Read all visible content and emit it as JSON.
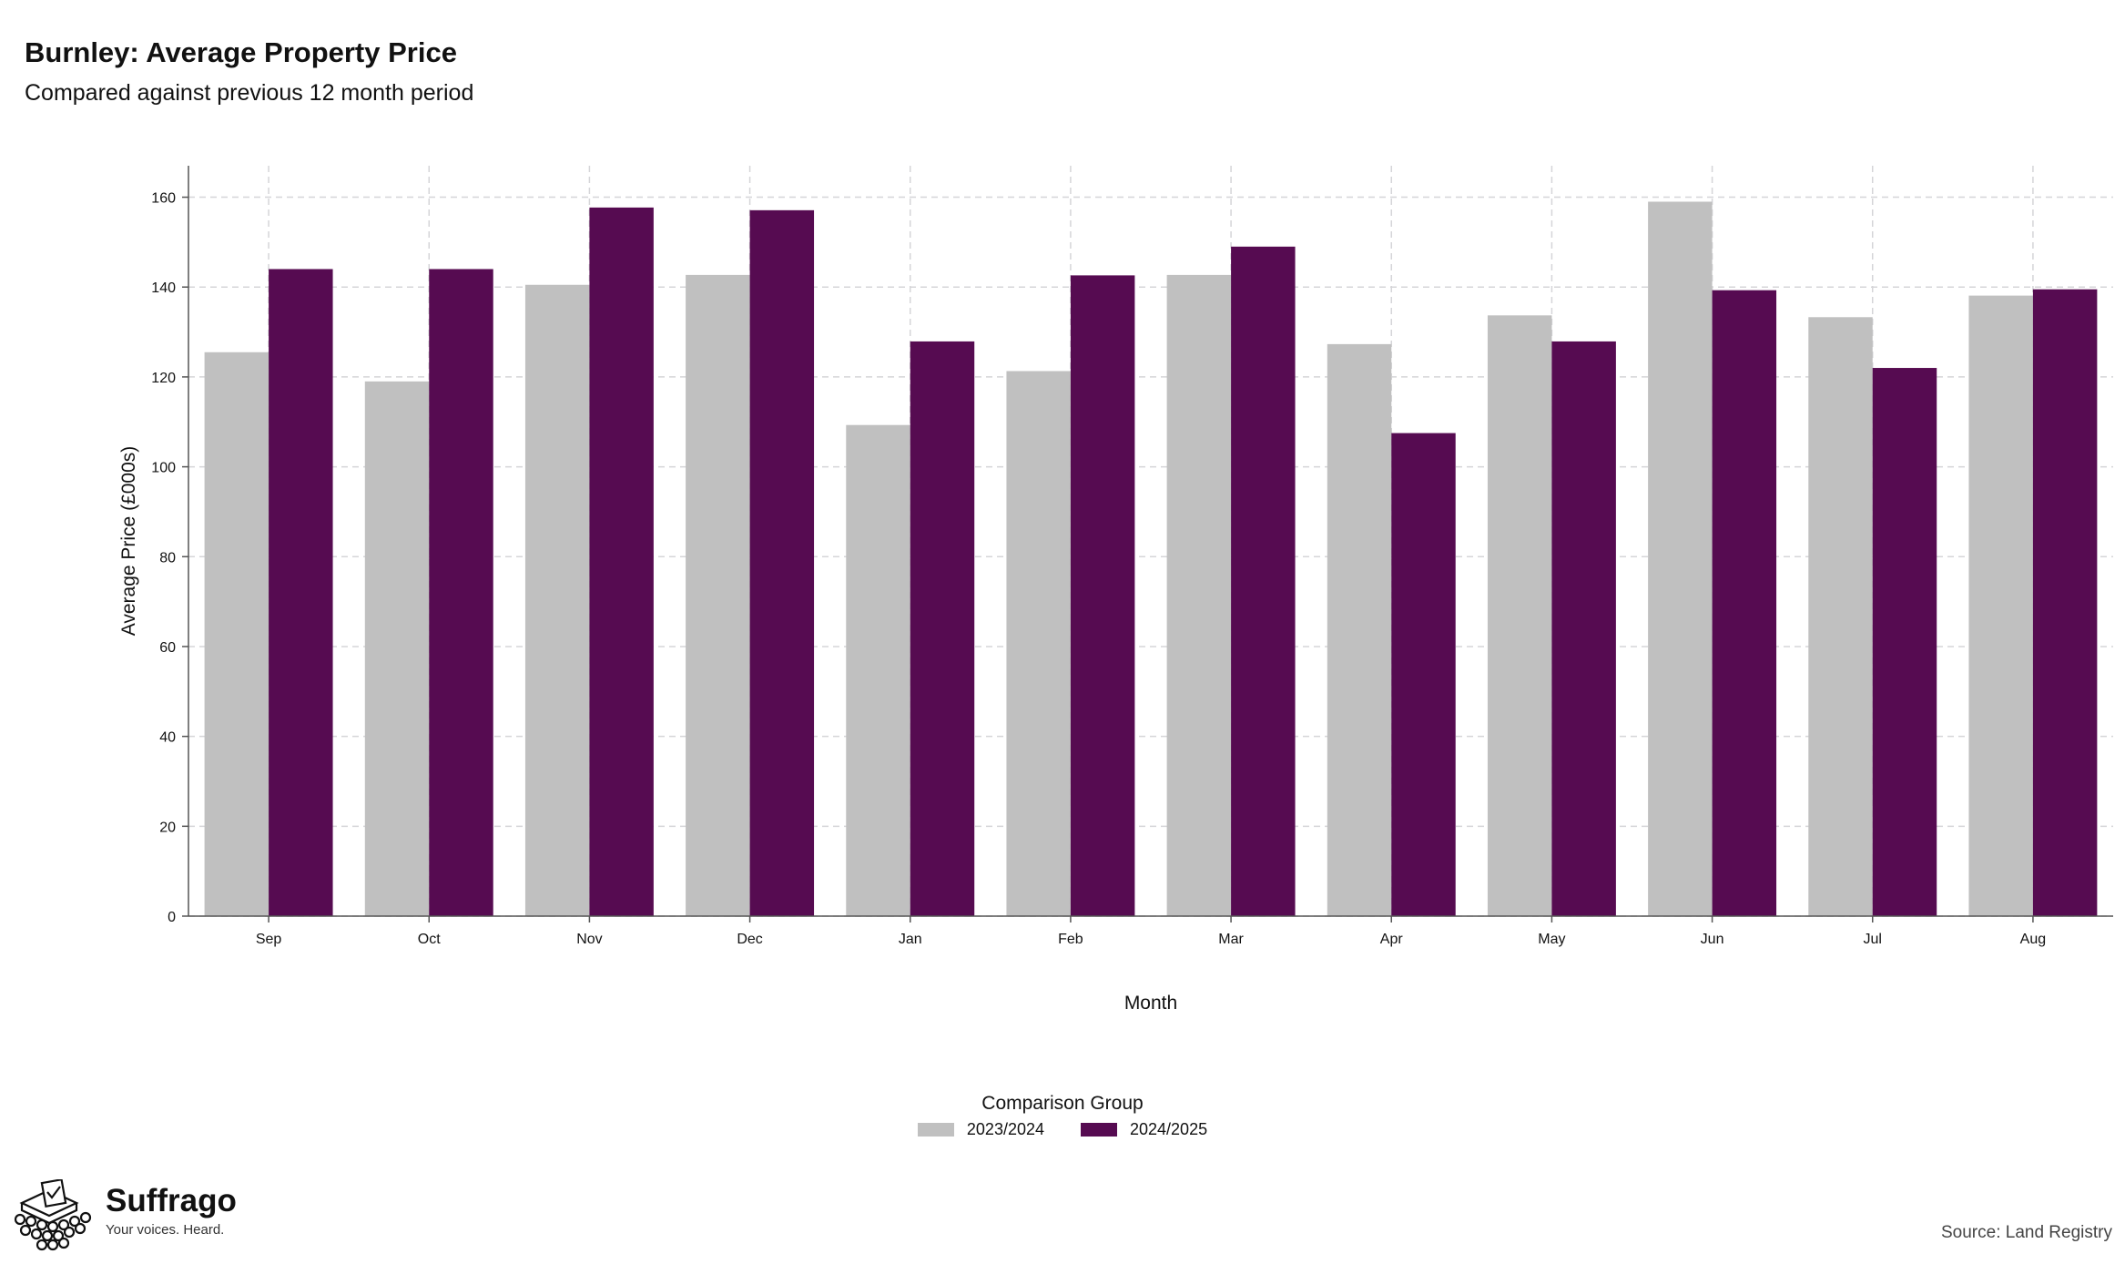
{
  "header": {
    "title": "Burnley: Average Property Price",
    "subtitle": "Compared against previous 12 month period"
  },
  "chart_data": {
    "type": "bar",
    "title": "Burnley: Average Property Price",
    "subtitle": "Compared against previous 12 month period",
    "xlabel": "Month",
    "ylabel": "Average Price (£000s)",
    "ylim": [
      0,
      167
    ],
    "yticks": [
      0,
      20,
      40,
      60,
      80,
      100,
      120,
      140,
      160
    ],
    "grid": true,
    "legend_position": "bottom",
    "legend_title": "Comparison Group",
    "categories": [
      "Sep",
      "Oct",
      "Nov",
      "Dec",
      "Jan",
      "Feb",
      "Mar",
      "Apr",
      "May",
      "Jun",
      "Jul",
      "Aug"
    ],
    "series": [
      {
        "name": "2023/2024",
        "color": "#c0c0c0",
        "values": [
          125.5,
          119.0,
          140.5,
          142.7,
          109.3,
          121.3,
          142.7,
          127.3,
          133.7,
          159.0,
          133.3,
          138.1
        ]
      },
      {
        "name": "2024/2025",
        "color": "#560b51",
        "values": [
          144.0,
          144.0,
          157.7,
          157.1,
          127.9,
          142.6,
          149.0,
          107.5,
          127.9,
          139.3,
          122.0,
          139.5
        ]
      }
    ]
  },
  "branding": {
    "name": "Suffrago",
    "tagline": "Your voices. Heard.",
    "logo_icon": "ballot-box-icon"
  },
  "footer": {
    "source": "Source: Land Registry"
  }
}
